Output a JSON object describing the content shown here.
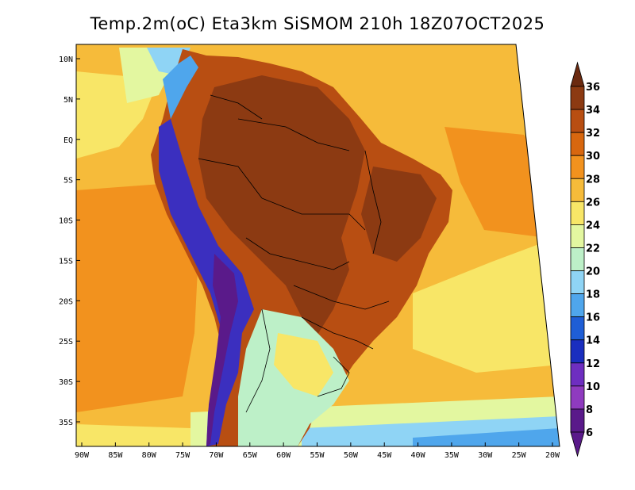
{
  "title": "Temp.2m(oC) Eta3km SiSMOM 210h 18Z07OCT2025",
  "lat_labels": [
    "10N",
    "5N",
    "EQ",
    "5S",
    "10S",
    "15S",
    "20S",
    "25S",
    "30S",
    "35S"
  ],
  "lat_values": [
    10,
    5,
    0,
    -5,
    -10,
    -15,
    -20,
    -25,
    -30,
    -35
  ],
  "lon_labels": [
    "90W",
    "85W",
    "80W",
    "75W",
    "70W",
    "65W",
    "60W",
    "55W",
    "50W",
    "45W",
    "40W",
    "35W",
    "30W",
    "25W",
    "20W"
  ],
  "lon_values": [
    -90,
    -85,
    -80,
    -75,
    -70,
    -65,
    -60,
    -55,
    -50,
    -45,
    -40,
    -35,
    -30,
    -25,
    -20
  ],
  "colorbar": {
    "labels": [
      "36",
      "34",
      "32",
      "30",
      "28",
      "26",
      "24",
      "22",
      "20",
      "18",
      "16",
      "14",
      "12",
      "10",
      "8",
      "6"
    ],
    "colors": [
      "#6b2a10",
      "#8c3a12",
      "#b84e12",
      "#d8670f",
      "#f2921e",
      "#f6bb3a",
      "#f8e667",
      "#e3f7a0",
      "#bdf0c8",
      "#8fd4f5",
      "#4fa6ec",
      "#1f5ed6",
      "#1a2ebf",
      "#6e2ec0",
      "#8f3bbf",
      "#5a1a8a"
    ]
  },
  "legend_colors": {
    "ocean_warm": "#f2921e",
    "ocean_mid": "#f6bb3a",
    "ocean_cool": "#f8e667",
    "land_hot": "#8c3a12",
    "land_warm": "#b84e12",
    "andes": "#3b2fbf",
    "south_cool": "#bdf0c8"
  }
}
